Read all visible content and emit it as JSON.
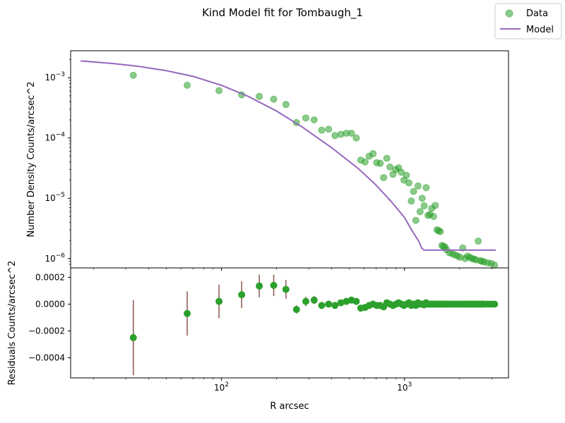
{
  "figure": {
    "title": "Kind Model fit for Tombaugh_1",
    "xlabel": "R arcsec",
    "legend": {
      "placement": "top-right",
      "data_label": "Data",
      "model_label": "Model"
    }
  },
  "colors": {
    "data": "#2ca02c",
    "model": "#9467bd",
    "errorbar": "#8c564b"
  },
  "chart_data": [
    {
      "type": "scatter",
      "panel": "top",
      "ylabel": "Number Density Counts/arcsec^2",
      "xscale": "log",
      "yscale": "log",
      "xlim": [
        15,
        3700
      ],
      "ylim": [
        7e-07,
        0.0028
      ],
      "xticks": [
        {
          "value": 100,
          "label": "10",
          "exp": "2"
        },
        {
          "value": 1000,
          "label": "10",
          "exp": "3"
        }
      ],
      "yticks": [
        {
          "value": 0.001,
          "label": "10",
          "exp": "−3"
        },
        {
          "value": 0.0001,
          "label": "10",
          "exp": "−4"
        },
        {
          "value": 1e-05,
          "label": "10",
          "exp": "−5"
        },
        {
          "value": 1e-06,
          "label": "10",
          "exp": "−6"
        }
      ],
      "series": [
        {
          "name": "Data",
          "kind": "points",
          "x": [
            33,
            65,
            97,
            129,
            161,
            193,
            225,
            257,
            289,
            321,
            353,
            385,
            417,
            449,
            481,
            513,
            545,
            577,
            609,
            641,
            673,
            705,
            737,
            769,
            801,
            833,
            865,
            897,
            929,
            961,
            993,
            1025,
            1057,
            1089,
            1121,
            1153,
            1185,
            1217,
            1249,
            1281,
            1313,
            1345,
            1377,
            1409,
            1441,
            1473,
            1505,
            1537,
            1569,
            1601,
            1633,
            1665,
            1697,
            1761,
            1825,
            1889,
            1953,
            2017,
            2081,
            2145,
            2209,
            2273,
            2337,
            2401,
            2465,
            2529,
            2593,
            2657,
            2721,
            2849,
            2977,
            3105
          ],
          "y": [
            0.0011,
            0.00075,
            0.00061,
            0.00052,
            0.00049,
            0.00044,
            0.00036,
            0.00018,
            0.000215,
            0.0002,
            0.000135,
            0.00014,
            0.00011,
            0.000115,
            0.00012,
            0.00012,
            0.0001,
            4.3e-05,
            4e-05,
            5e-05,
            5.5e-05,
            3.9e-05,
            3.8e-05,
            2.2e-05,
            4.6e-05,
            3.3e-05,
            2.5e-05,
            3e-05,
            3.2e-05,
            2.7e-05,
            2e-05,
            2.4e-05,
            1.8e-05,
            9e-06,
            1.3e-05,
            4.3e-06,
            1.6e-05,
            6e-06,
            1e-05,
            7.5e-06,
            1.5e-05,
            5.2e-06,
            5.4e-06,
            6.8e-06,
            5e-06,
            7.6e-06,
            3e-06,
            2.9e-06,
            2.8e-06,
            1.65e-06,
            1.6e-06,
            1.55e-06,
            1.4e-06,
            1.25e-06,
            1.2e-06,
            1.15e-06,
            1.1e-06,
            1.05e-06,
            1.5e-06,
            1e-06,
            1.1e-06,
            1.05e-06,
            1e-06,
            9.8e-07,
            9.5e-07,
            1.95e-06,
            9.2e-07,
            9e-07,
            8.8e-07,
            8.5e-07,
            8.3e-07,
            7.8e-07
          ]
        },
        {
          "name": "Model",
          "kind": "line",
          "x": [
            17,
            25,
            35,
            50,
            70,
            100,
            140,
            200,
            280,
            400,
            560,
            700,
            850,
            1000,
            1100,
            1200,
            1240,
            1280,
            1300,
            3150
          ],
          "y": [
            0.0019,
            0.00173,
            0.00155,
            0.00131,
            0.00105,
            0.00075,
            0.00049,
            0.00028,
            0.000148,
            6.9e-05,
            3.1e-05,
            1.65e-05,
            8.7e-06,
            4.8e-06,
            2.9e-06,
            1.9e-06,
            1.5e-06,
            1.38e-06,
            1.38e-06,
            1.38e-06
          ]
        }
      ]
    },
    {
      "type": "scatter",
      "panel": "bottom",
      "ylabel": "Residuals Counts/arcsec^2",
      "xscale": "log",
      "yscale": "linear",
      "xlim": [
        15,
        3700
      ],
      "ylim": [
        -0.00055,
        0.00027
      ],
      "yticks": [
        {
          "value": 0.0002,
          "label": "0.0002"
        },
        {
          "value": 0.0,
          "label": "0.0000"
        },
        {
          "value": -0.0002,
          "label": "−0.0002"
        },
        {
          "value": -0.0004,
          "label": "−0.0004"
        }
      ],
      "series": [
        {
          "kind": "errorbar",
          "x": [
            33,
            65,
            97,
            129,
            161,
            193,
            225,
            257,
            289,
            321,
            353,
            385,
            417,
            449,
            481,
            513,
            545,
            577,
            609,
            641,
            673,
            705,
            737,
            769,
            801,
            833,
            865,
            897,
            929,
            961,
            993,
            1025,
            1057,
            1089,
            1121,
            1153,
            1185,
            1217,
            1249,
            1281,
            1313,
            1345,
            1377,
            1409,
            1441,
            1473,
            1505,
            1537,
            1569,
            1601,
            1633,
            1665,
            1697,
            1761,
            1825,
            1889,
            1953,
            2017,
            2081,
            2145,
            2209,
            2273,
            2337,
            2401,
            2465,
            2529,
            2593,
            2657,
            2721,
            2849,
            2977,
            3105
          ],
          "y": [
            -0.00025,
            -7e-05,
            2e-05,
            7e-05,
            0.000135,
            0.00014,
            0.00011,
            -4e-05,
            2e-05,
            3e-05,
            -1e-05,
            0.0,
            -1e-05,
            1e-05,
            2e-05,
            3e-05,
            2e-05,
            -3e-05,
            -2.5e-05,
            -1e-05,
            0.0,
            -1e-05,
            -1e-05,
            -2e-05,
            1e-05,
            0.0,
            -1e-05,
            0.0,
            1e-05,
            0.0,
            -1e-05,
            0.0,
            1e-05,
            -1e-05,
            0.0,
            -1e-05,
            1e-05,
            0.0,
            0.0,
            -5e-06,
            1e-05,
            0.0,
            0.0,
            0.0,
            0.0,
            0.0,
            0.0,
            0.0,
            0.0,
            0.0,
            0.0,
            0.0,
            0.0,
            0.0,
            0.0,
            0.0,
            0.0,
            0.0,
            0.0,
            0.0,
            0.0,
            0.0,
            0.0,
            0.0,
            0.0,
            0.0,
            0.0,
            0.0,
            0.0,
            0.0,
            0.0,
            0.0
          ],
          "err": [
            0.00028,
            0.000165,
            0.000125,
            0.0001,
            8.5e-05,
            8e-05,
            7e-05,
            3e-05,
            3.5e-05,
            3e-05,
            2e-05,
            2e-05,
            1.5e-05,
            1.5e-05,
            1.5e-05,
            1.5e-05,
            1.2e-05,
            1e-05,
            1e-05,
            1e-05,
            1e-05,
            1e-05,
            1e-05,
            1e-05,
            1e-05,
            1e-05,
            1e-05,
            1e-05,
            1e-05,
            1e-05,
            1e-05,
            1e-05,
            1e-05,
            1e-05,
            1e-05,
            1e-05,
            1e-05,
            1e-05,
            1e-05,
            1e-05,
            1e-05,
            1e-05,
            1e-05,
            1e-05,
            1e-05,
            1e-05,
            1e-05,
            1e-05,
            1e-05,
            1e-05,
            1e-05,
            1e-05,
            1e-05,
            1e-05,
            1e-05,
            1e-05,
            1e-05,
            1e-05,
            1e-05,
            1e-05,
            1e-05,
            1e-05,
            1e-05,
            1e-05,
            1e-05,
            1e-05,
            1e-05,
            1e-05,
            1e-05,
            1e-05,
            1e-05,
            1e-05
          ]
        }
      ]
    }
  ]
}
